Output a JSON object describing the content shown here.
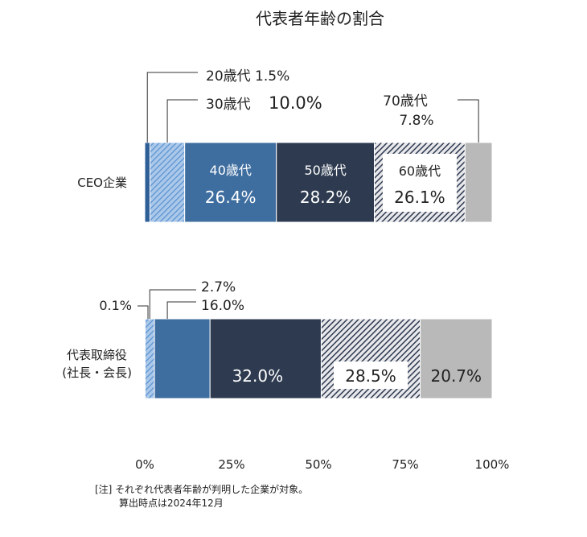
{
  "chart_data": {
    "type": "bar",
    "orientation": "horizontal",
    "stacked": true,
    "title": "代表者年齢の割合",
    "categories": [
      "CEO企業",
      "代表取締役\n(社長・会長)"
    ],
    "series": [
      {
        "name": "20歳代",
        "values": [
          1.5,
          0.1
        ],
        "color": "#2e5f97",
        "fill": "solid"
      },
      {
        "name": "30歳代",
        "values": [
          10.0,
          2.7
        ],
        "color": "#5b92cf",
        "fill": "hatch-light"
      },
      {
        "name": "40歳代",
        "values": [
          26.4,
          16.0
        ],
        "color": "#3e6d9f",
        "fill": "solid"
      },
      {
        "name": "50歳代",
        "values": [
          28.2,
          32.0
        ],
        "color": "#2d3a4f",
        "fill": "solid"
      },
      {
        "name": "60歳代",
        "values": [
          26.1,
          28.5
        ],
        "color": "#2d3a4f",
        "fill": "hatch-dark"
      },
      {
        "name": "70歳代",
        "values": [
          7.8,
          20.7
        ],
        "color": "#b9b9b9",
        "fill": "solid"
      }
    ],
    "data_labels": {
      "ceo": {
        "age20": {
          "age": "20歳代",
          "value": "1.5%"
        },
        "age30": {
          "age": "30歳代",
          "value": "10.0%"
        },
        "age40": {
          "age": "40歳代",
          "value": "26.4%"
        },
        "age50": {
          "age": "50歳代",
          "value": "28.2%"
        },
        "age60": {
          "age": "60歳代",
          "value": "26.1%"
        },
        "age70": {
          "age": "70歳代",
          "value": "7.8%"
        }
      },
      "rep": {
        "age20": {
          "value": "0.1%"
        },
        "age30": {
          "value": "2.7%"
        },
        "age40": {
          "value": "16.0%"
        },
        "age50": {
          "value": "32.0%"
        },
        "age60": {
          "value": "28.5%"
        },
        "age70": {
          "value": "20.7%"
        }
      }
    },
    "xlim": [
      0,
      100
    ],
    "xticks": [
      "0%",
      "25%",
      "50%",
      "75%",
      "100%"
    ],
    "xlabel": "",
    "ylabel": "",
    "grid": false,
    "legend": "none"
  },
  "rep_label_lines": [
    "代表取締役",
    "(社長・会長)"
  ],
  "note": {
    "line1": "[注] それぞれ代表者年齢が判明した企業が対象。",
    "line2": "算出時点は2024年12月"
  }
}
